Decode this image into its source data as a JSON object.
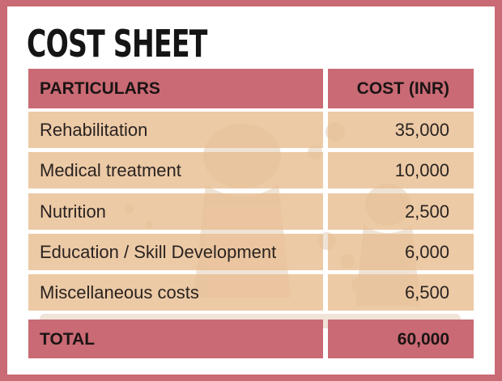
{
  "title": "COST SHEET",
  "colors": {
    "border": "#c96a74",
    "header": "#c96a74",
    "row": "#e8be92",
    "title": "#151515"
  },
  "table": {
    "headers": [
      "PARTICULARS",
      "COST (INR)"
    ],
    "rows": [
      {
        "particular": "Rehabilitation",
        "cost": "35,000"
      },
      {
        "particular": "Medical treatment",
        "cost": "10,000"
      },
      {
        "particular": "Nutrition",
        "cost": "2,500"
      },
      {
        "particular": "Education / Skill Development",
        "cost": "6,000"
      },
      {
        "particular": "Miscellaneous costs",
        "cost": "6,500"
      }
    ],
    "total": {
      "label": "TOTAL",
      "cost": "60,000"
    }
  }
}
